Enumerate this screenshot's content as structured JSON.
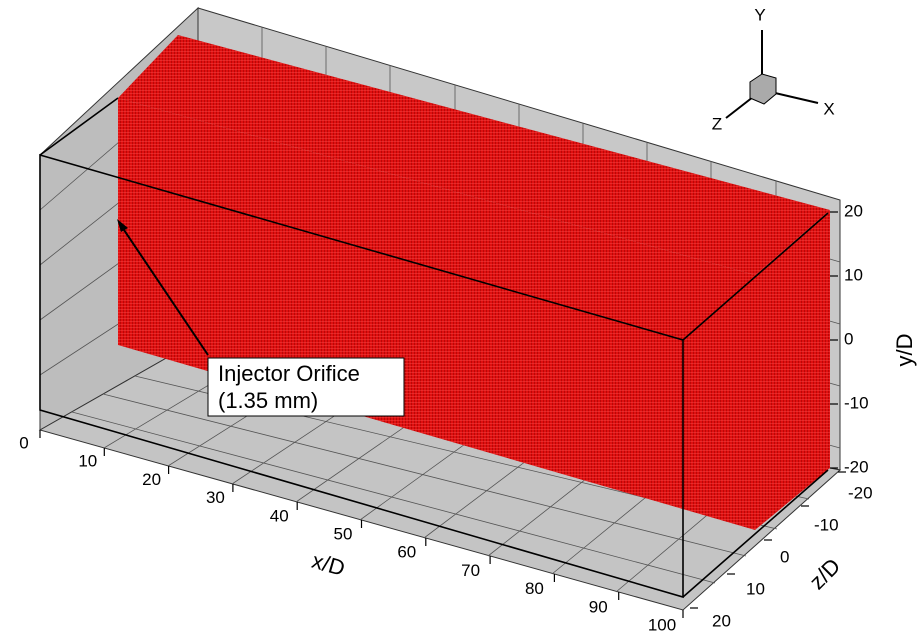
{
  "axes": {
    "x": {
      "label": "x/D",
      "ticks": [
        0,
        10,
        20,
        30,
        40,
        50,
        60,
        70,
        80,
        90,
        100
      ]
    },
    "y": {
      "label": "y/D",
      "ticks": [
        -20,
        -10,
        0,
        10,
        20
      ]
    },
    "z": {
      "label": "z/D",
      "ticks": [
        -20,
        -10,
        0,
        10,
        20
      ]
    }
  },
  "triad": {
    "x": "X",
    "y": "Y",
    "z": "Z"
  },
  "annotation": {
    "lines": [
      "Injector Orifice",
      "(1.35 mm)"
    ]
  }
}
